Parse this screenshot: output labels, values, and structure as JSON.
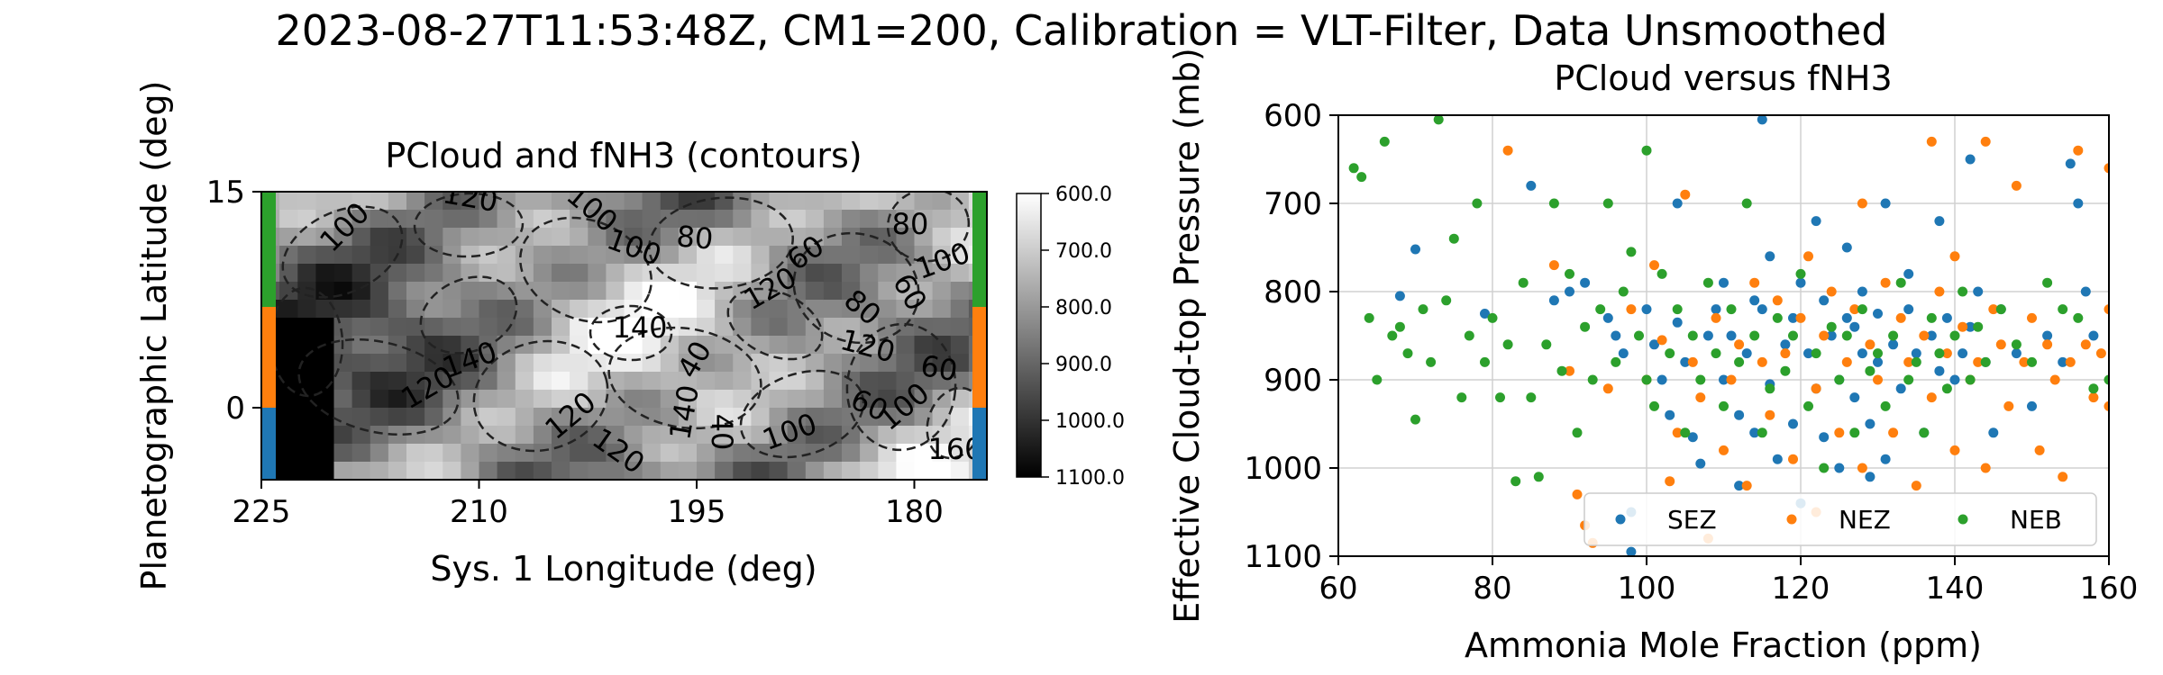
{
  "figure": {
    "suptitle": "2023-08-27T11:53:48Z, CM1=200, Calibration = VLT-Filter, Data Unsmoothed"
  },
  "chart_data": [
    {
      "type": "heatmap",
      "title": "PCloud and fNH3 (contours)",
      "xlabel": "Sys. 1 Longitude (deg)",
      "ylabel": "Planetographic Latitude (deg)",
      "xlim": [
        225,
        175
      ],
      "ylim": [
        -5,
        15
      ],
      "xticks": [
        "225",
        "210",
        "195",
        "180"
      ],
      "yticks": [
        "15",
        "0"
      ],
      "colormap": "gray",
      "colorbar": {
        "range": [
          600,
          1100
        ],
        "reversed": true,
        "ticks": [
          "600.0",
          "700.0",
          "800.0",
          "900.0",
          "1000.0",
          "1100.0"
        ]
      },
      "contour_labels": [
        "100",
        "120",
        "100",
        "80",
        "60",
        "80",
        "100",
        "120",
        "60",
        "40",
        "140",
        "120",
        "120",
        "100",
        "120",
        "140",
        "100",
        "60",
        "40",
        "80",
        "60",
        "100",
        "120",
        "140",
        "160"
      ],
      "region_bars": [
        {
          "name": "SEZ",
          "lat": [
            -5,
            0
          ],
          "color": "#1f77b4"
        },
        {
          "name": "NEZ",
          "lat": [
            0,
            7
          ],
          "color": "#ff7f0e"
        },
        {
          "name": "NEB",
          "lat": [
            7,
            15
          ],
          "color": "#2ca02c"
        }
      ],
      "grid": false
    },
    {
      "type": "scatter",
      "title": "PCloud versus fNH3",
      "xlabel": "Ammonia Mole Fraction (ppm)",
      "ylabel": "Effective Cloud-top Pressure (mb)",
      "xlim": [
        60,
        160
      ],
      "ylim": [
        1100,
        600
      ],
      "xticks": [
        "60",
        "80",
        "100",
        "120",
        "140",
        "160"
      ],
      "yticks": [
        "600",
        "700",
        "800",
        "900",
        "1000",
        "1100"
      ],
      "grid": true,
      "legend_position": "lower-right",
      "series": [
        {
          "name": "SEZ",
          "color": "#1f77b4",
          "points": [
            [
              70,
              752
            ],
            [
              68,
              805
            ],
            [
              79,
              825
            ],
            [
              85,
              680
            ],
            [
              88,
              810
            ],
            [
              90,
              800
            ],
            [
              92,
              790
            ],
            [
              95,
              830
            ],
            [
              96,
              850
            ],
            [
              97,
              870
            ],
            [
              98,
              1050
            ],
            [
              98,
              1095
            ],
            [
              100,
              820
            ],
            [
              101,
              860
            ],
            [
              102,
              900
            ],
            [
              103,
              940
            ],
            [
              104,
              700
            ],
            [
              104,
              835
            ],
            [
              105,
              880
            ],
            [
              106,
              965
            ],
            [
              107,
              995
            ],
            [
              108,
              850
            ],
            [
              109,
              820
            ],
            [
              110,
              790
            ],
            [
              110,
              900
            ],
            [
              111,
              850
            ],
            [
              112,
              940
            ],
            [
              112,
              1020
            ],
            [
              113,
              870
            ],
            [
              114,
              810
            ],
            [
              114,
              960
            ],
            [
              115,
              605
            ],
            [
              115,
              820
            ],
            [
              116,
              760
            ],
            [
              116,
              905
            ],
            [
              117,
              990
            ],
            [
              118,
              860
            ],
            [
              119,
              830
            ],
            [
              119,
              950
            ],
            [
              120,
              790
            ],
            [
              120,
              1040
            ],
            [
              121,
              870
            ],
            [
              122,
              720
            ],
            [
              122,
              910
            ],
            [
              123,
              810
            ],
            [
              123,
              965
            ],
            [
              124,
              850
            ],
            [
              125,
              900
            ],
            [
              125,
              1000
            ],
            [
              126,
              750
            ],
            [
              126,
              830
            ],
            [
              127,
              920
            ],
            [
              127,
              840
            ],
            [
              128,
              800
            ],
            [
              128,
              870
            ],
            [
              129,
              950
            ],
            [
              129,
              1010
            ],
            [
              130,
              825
            ],
            [
              130,
              880
            ],
            [
              131,
              700
            ],
            [
              131,
              990
            ],
            [
              132,
              860
            ],
            [
              133,
              910
            ],
            [
              134,
              820
            ],
            [
              134,
              780
            ],
            [
              135,
              870
            ],
            [
              136,
              960
            ],
            [
              137,
              850
            ],
            [
              138,
              720
            ],
            [
              138,
              890
            ],
            [
              139,
              830
            ],
            [
              140,
              900
            ],
            [
              141,
              870
            ],
            [
              142,
              650
            ],
            [
              142,
              840
            ],
            [
              143,
              800
            ],
            [
              144,
              880
            ],
            [
              145,
              960
            ],
            [
              146,
              820
            ],
            [
              148,
              870
            ],
            [
              150,
              930
            ],
            [
              152,
              850
            ],
            [
              154,
              880
            ],
            [
              155,
              655
            ],
            [
              156,
              700
            ],
            [
              157,
              800
            ],
            [
              158,
              850
            ]
          ]
        },
        {
          "name": "NEZ",
          "color": "#ff7f0e",
          "points": [
            [
              82,
              640
            ],
            [
              88,
              770
            ],
            [
              90,
              890
            ],
            [
              91,
              1030
            ],
            [
              92,
              1065
            ],
            [
              93,
              1085
            ],
            [
              95,
              910
            ],
            [
              98,
              820
            ],
            [
              100,
              900
            ],
            [
              101,
              770
            ],
            [
              102,
              855
            ],
            [
              103,
              1015
            ],
            [
              104,
              960
            ],
            [
              105,
              690
            ],
            [
              106,
              880
            ],
            [
              107,
              920
            ],
            [
              108,
              1080
            ],
            [
              109,
              830
            ],
            [
              110,
              980
            ],
            [
              111,
              900
            ],
            [
              112,
              860
            ],
            [
              113,
              1020
            ],
            [
              114,
              790
            ],
            [
              115,
              880
            ],
            [
              116,
              940
            ],
            [
              117,
              810
            ],
            [
              118,
              870
            ],
            [
              119,
              990
            ],
            [
              120,
              830
            ],
            [
              121,
              760
            ],
            [
              122,
              910
            ],
            [
              122,
              1050
            ],
            [
              123,
              850
            ],
            [
              124,
              800
            ],
            [
              125,
              960
            ],
            [
              126,
              880
            ],
            [
              127,
              820
            ],
            [
              128,
              1000
            ],
            [
              128,
              700
            ],
            [
              129,
              860
            ],
            [
              130,
              900
            ],
            [
              131,
              790
            ],
            [
              132,
              960
            ],
            [
              133,
              830
            ],
            [
              134,
              880
            ],
            [
              135,
              1020
            ],
            [
              136,
              850
            ],
            [
              137,
              920
            ],
            [
              137,
              630
            ],
            [
              138,
              800
            ],
            [
              139,
              870
            ],
            [
              140,
              980
            ],
            [
              140,
              760
            ],
            [
              141,
              840
            ],
            [
              142,
              900
            ],
            [
              143,
              880
            ],
            [
              144,
              1000
            ],
            [
              144,
              630
            ],
            [
              145,
              820
            ],
            [
              146,
              860
            ],
            [
              147,
              930
            ],
            [
              148,
              680
            ],
            [
              149,
              880
            ],
            [
              150,
              830
            ],
            [
              151,
              980
            ],
            [
              152,
              860
            ],
            [
              153,
              900
            ],
            [
              154,
              1010
            ],
            [
              155,
              880
            ],
            [
              156,
              640
            ],
            [
              157,
              860
            ],
            [
              158,
              920
            ],
            [
              159,
              870
            ],
            [
              160,
              660
            ],
            [
              160,
              820
            ],
            [
              160,
              930
            ]
          ]
        },
        {
          "name": "NEB",
          "color": "#2ca02c",
          "points": [
            [
              62,
              660
            ],
            [
              63,
              670
            ],
            [
              64,
              830
            ],
            [
              65,
              900
            ],
            [
              66,
              630
            ],
            [
              67,
              850
            ],
            [
              68,
              840
            ],
            [
              69,
              870
            ],
            [
              70,
              945
            ],
            [
              71,
              820
            ],
            [
              72,
              880
            ],
            [
              73,
              605
            ],
            [
              74,
              810
            ],
            [
              75,
              740
            ],
            [
              76,
              920
            ],
            [
              77,
              850
            ],
            [
              78,
              700
            ],
            [
              79,
              880
            ],
            [
              80,
              830
            ],
            [
              81,
              920
            ],
            [
              82,
              860
            ],
            [
              83,
              1015
            ],
            [
              84,
              790
            ],
            [
              85,
              920
            ],
            [
              86,
              1010
            ],
            [
              87,
              860
            ],
            [
              88,
              700
            ],
            [
              89,
              890
            ],
            [
              90,
              780
            ],
            [
              91,
              960
            ],
            [
              92,
              840
            ],
            [
              93,
              900
            ],
            [
              94,
              820
            ],
            [
              95,
              700
            ],
            [
              96,
              880
            ],
            [
              97,
              800
            ],
            [
              98,
              755
            ],
            [
              99,
              850
            ],
            [
              100,
              900
            ],
            [
              100,
              640
            ],
            [
              101,
              930
            ],
            [
              102,
              780
            ],
            [
              103,
              870
            ],
            [
              104,
              820
            ],
            [
              105,
              960
            ],
            [
              106,
              850
            ],
            [
              107,
              900
            ],
            [
              108,
              790
            ],
            [
              109,
              870
            ],
            [
              110,
              930
            ],
            [
              111,
              820
            ],
            [
              112,
              880
            ],
            [
              113,
              700
            ],
            [
              114,
              850
            ],
            [
              115,
              960
            ],
            [
              116,
              910
            ],
            [
              117,
              830
            ],
            [
              118,
              890
            ],
            [
              119,
              850
            ],
            [
              120,
              780
            ],
            [
              121,
              930
            ],
            [
              122,
              870
            ],
            [
              123,
              1000
            ],
            [
              124,
              840
            ],
            [
              125,
              900
            ],
            [
              126,
              850
            ],
            [
              127,
              960
            ],
            [
              128,
              820
            ],
            [
              129,
              890
            ],
            [
              130,
              870
            ],
            [
              131,
              930
            ],
            [
              132,
              850
            ],
            [
              133,
              790
            ],
            [
              134,
              900
            ],
            [
              135,
              880
            ],
            [
              136,
              960
            ],
            [
              137,
              830
            ],
            [
              138,
              870
            ],
            [
              139,
              910
            ],
            [
              140,
              850
            ],
            [
              141,
              800
            ],
            [
              142,
              900
            ],
            [
              143,
              840
            ],
            [
              144,
              880
            ],
            [
              146,
              820
            ],
            [
              148,
              860
            ],
            [
              150,
              880
            ],
            [
              152,
              790
            ],
            [
              154,
              820
            ],
            [
              156,
              830
            ],
            [
              158,
              910
            ],
            [
              160,
              900
            ]
          ]
        }
      ]
    }
  ]
}
